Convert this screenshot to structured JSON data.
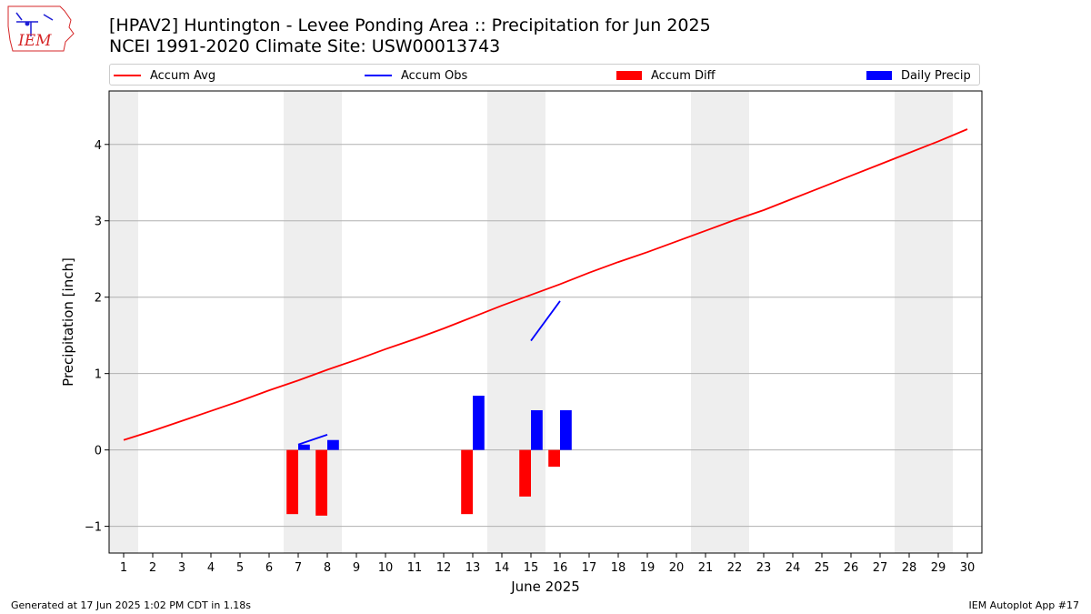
{
  "header": {
    "title_line1": "[HPAV2] Huntington - Levee Ponding Area :: Precipitation for Jun 2025",
    "title_line2": "NCEI 1991-2020 Climate Site: USW00013743"
  },
  "logo": {
    "text": "IEM",
    "color": "#d62728",
    "icon": "iowa-state-outline-logo"
  },
  "footer": {
    "left": "Generated at 17 Jun 2025 1:02 PM CDT in 1.18s",
    "right": "IEM Autoplot App #17"
  },
  "colors": {
    "avg": "#ff0000",
    "obs": "#0000ff",
    "diff": "#ff0000",
    "daily": "#0000ff",
    "weekend": "#eeeeee",
    "grid": "#b0b0b0"
  },
  "chart_data": {
    "type": "bar",
    "xlabel": "June 2025",
    "ylabel": "Precipitation [inch]",
    "xlim": [
      0.5,
      30.5
    ],
    "ylim": [
      -1.35,
      4.7
    ],
    "x_ticks": [
      1,
      2,
      3,
      4,
      5,
      6,
      7,
      8,
      9,
      10,
      11,
      12,
      13,
      14,
      15,
      16,
      17,
      18,
      19,
      20,
      21,
      22,
      23,
      24,
      25,
      26,
      27,
      28,
      29,
      30
    ],
    "y_ticks": [
      -1,
      0,
      1,
      2,
      3,
      4
    ],
    "y_tick_labels": [
      "−1",
      "0",
      "1",
      "2",
      "3",
      "4"
    ],
    "grid": "horizontal",
    "legend_position": "top",
    "weekend_shading": [
      [
        0.5,
        1.5
      ],
      [
        6.5,
        8.5
      ],
      [
        13.5,
        15.5
      ],
      [
        20.5,
        22.5
      ],
      [
        27.5,
        29.5
      ]
    ],
    "legend": [
      "Accum Avg",
      "Accum Obs",
      "Accum Diff",
      "Daily Precip"
    ],
    "series": [
      {
        "name": "Accum Avg",
        "kind": "line",
        "x": [
          1,
          2,
          3,
          4,
          5,
          6,
          7,
          8,
          9,
          10,
          11,
          12,
          13,
          14,
          15,
          16,
          17,
          18,
          19,
          20,
          21,
          22,
          23,
          24,
          25,
          26,
          27,
          28,
          29,
          30
        ],
        "values": [
          0.13,
          0.25,
          0.38,
          0.51,
          0.64,
          0.78,
          0.91,
          1.05,
          1.18,
          1.32,
          1.45,
          1.59,
          1.74,
          1.89,
          2.03,
          2.17,
          2.32,
          2.46,
          2.59,
          2.73,
          2.87,
          3.01,
          3.14,
          3.29,
          3.44,
          3.59,
          3.74,
          3.89,
          4.04,
          4.2
        ]
      },
      {
        "name": "Accum Obs",
        "kind": "line",
        "segments": [
          {
            "x": [
              7,
              8
            ],
            "values": [
              0.07,
              0.2
            ]
          },
          {
            "x": [
              15,
              16
            ],
            "values": [
              1.43,
              1.95
            ]
          }
        ]
      },
      {
        "name": "Accum Diff",
        "kind": "bar",
        "x": [
          7,
          8,
          13,
          15,
          16
        ],
        "values": [
          -0.84,
          -0.86,
          -0.84,
          -0.61,
          -0.22
        ]
      },
      {
        "name": "Daily Precip",
        "kind": "bar",
        "x": [
          7,
          8,
          13,
          15,
          16
        ],
        "values": [
          0.07,
          0.13,
          0.71,
          0.52,
          0.52
        ]
      }
    ]
  }
}
